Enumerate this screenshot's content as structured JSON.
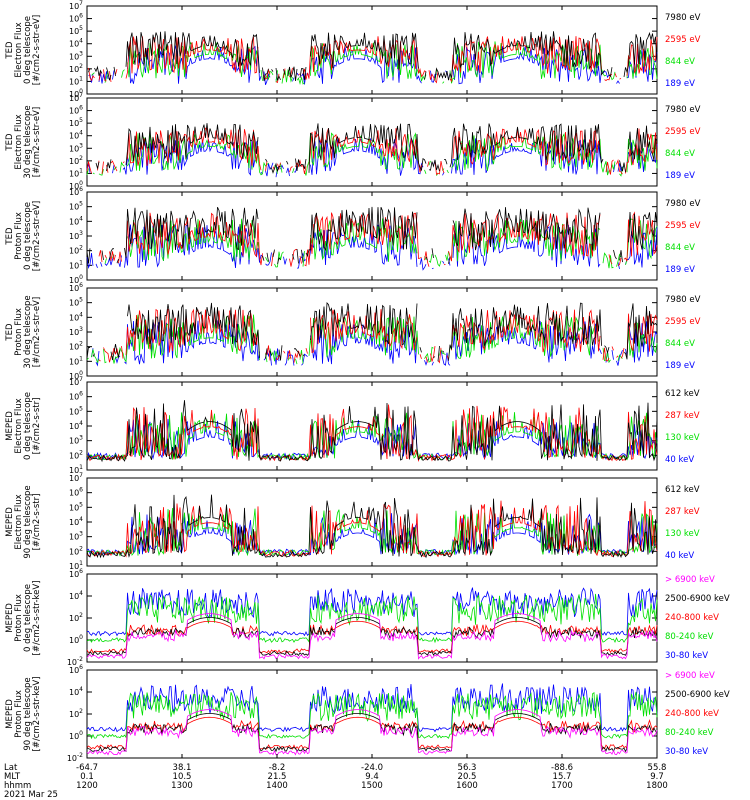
{
  "chart_data": [
    {
      "type": "line",
      "ylabel": [
        "TED",
        "Electron Flux",
        "0 deg telescope",
        "[#/cm2-s-str-eV]"
      ],
      "y_log_range": [
        0,
        7
      ],
      "y_tick_labels": [
        "10^0",
        "10^1",
        "10^2",
        "10^3",
        "10^4",
        "10^5",
        "10^6",
        "10^7"
      ],
      "series": [
        {
          "name": "7980 eV",
          "color": "#000000"
        },
        {
          "name": "2595 eV",
          "color": "#ff0000"
        },
        {
          "name": "844 eV",
          "color": "#00e000"
        },
        {
          "name": "189 eV",
          "color": "#0000ff"
        }
      ]
    },
    {
      "type": "line",
      "ylabel": [
        "TED",
        "Electron Flux",
        "30 deg telescope",
        "[#/cm2-s-str-eV]"
      ],
      "y_log_range": [
        0,
        7
      ],
      "y_tick_labels": [
        "10^0",
        "10^1",
        "10^2",
        "10^3",
        "10^4",
        "10^5",
        "10^6",
        "10^7"
      ],
      "series": [
        {
          "name": "7980 eV",
          "color": "#000000"
        },
        {
          "name": "2595 eV",
          "color": "#ff0000"
        },
        {
          "name": "844 eV",
          "color": "#00e000"
        },
        {
          "name": "189 eV",
          "color": "#0000ff"
        }
      ]
    },
    {
      "type": "line",
      "ylabel": [
        "TED",
        "Proton Flux",
        "0 deg telescope",
        "[#/cm2-s-str-eV]"
      ],
      "y_log_range": [
        0,
        6
      ],
      "y_tick_labels": [
        "10^0",
        "10^1",
        "10^2",
        "10^3",
        "10^4",
        "10^5",
        "10^6"
      ],
      "series": [
        {
          "name": "7980 eV",
          "color": "#000000"
        },
        {
          "name": "2595 eV",
          "color": "#ff0000"
        },
        {
          "name": "844 eV",
          "color": "#00e000"
        },
        {
          "name": "189 eV",
          "color": "#0000ff"
        }
      ]
    },
    {
      "type": "line",
      "ylabel": [
        "TED",
        "Proton Flux",
        "30 deg telescope",
        "[#/cm2-s-str-eV]"
      ],
      "y_log_range": [
        0,
        6
      ],
      "y_tick_labels": [
        "10^0",
        "10^1",
        "10^2",
        "10^3",
        "10^4",
        "10^5",
        "10^6"
      ],
      "series": [
        {
          "name": "7980 eV",
          "color": "#000000"
        },
        {
          "name": "2595 eV",
          "color": "#ff0000"
        },
        {
          "name": "844 eV",
          "color": "#00e000"
        },
        {
          "name": "189 eV",
          "color": "#0000ff"
        }
      ]
    },
    {
      "type": "line",
      "ylabel": [
        "MEPED",
        "Electron Flux",
        "0 deg telescope",
        "[#/cm2-s-str]"
      ],
      "y_log_range": [
        1,
        7
      ],
      "y_tick_labels": [
        "10^1",
        "10^2",
        "10^3",
        "10^4",
        "10^5",
        "10^6",
        "10^7"
      ],
      "series": [
        {
          "name": "612 keV",
          "color": "#000000"
        },
        {
          "name": "287 keV",
          "color": "#ff0000"
        },
        {
          "name": "130 keV",
          "color": "#00e000"
        },
        {
          "name": "40 keV",
          "color": "#0000ff"
        }
      ]
    },
    {
      "type": "line",
      "ylabel": [
        "MEPED",
        "Electron Flux",
        "90 deg telescope",
        "[#/cm2-s-str]"
      ],
      "y_log_range": [
        1,
        7
      ],
      "y_tick_labels": [
        "10^1",
        "10^2",
        "10^3",
        "10^4",
        "10^5",
        "10^6",
        "10^7"
      ],
      "series": [
        {
          "name": "612 keV",
          "color": "#000000"
        },
        {
          "name": "287 keV",
          "color": "#ff0000"
        },
        {
          "name": "130 keV",
          "color": "#00e000"
        },
        {
          "name": "40 keV",
          "color": "#0000ff"
        }
      ]
    },
    {
      "type": "line",
      "ylabel": [
        "MEPED",
        "Proton Flux",
        "0 deg telescope",
        "[#/cm2-s-str-keV]"
      ],
      "y_log_range": [
        -2,
        6
      ],
      "y_tick_labels": [
        "10^-2",
        "10^0",
        "10^2",
        "10^4",
        "10^6"
      ],
      "series": [
        {
          "name": "> 6900 keV",
          "color": "#ff00ff"
        },
        {
          "name": "2500-6900 keV",
          "color": "#000000"
        },
        {
          "name": "240-800 keV",
          "color": "#ff0000"
        },
        {
          "name": "80-240 keV",
          "color": "#00e000"
        },
        {
          "name": "30-80 keV",
          "color": "#0000ff"
        }
      ]
    },
    {
      "type": "line",
      "ylabel": [
        "MEPED",
        "Proton Flux",
        "90 deg telescope",
        "[#/cm2-s-str-keV]"
      ],
      "y_log_range": [
        -2,
        6
      ],
      "y_tick_labels": [
        "10^-2",
        "10^0",
        "10^2",
        "10^4",
        "10^6"
      ],
      "series": [
        {
          "name": "> 6900 keV",
          "color": "#ff00ff"
        },
        {
          "name": "2500-6900 keV",
          "color": "#000000"
        },
        {
          "name": "240-800 keV",
          "color": "#ff0000"
        },
        {
          "name": "80-240 keV",
          "color": "#00e000"
        },
        {
          "name": "30-80 keV",
          "color": "#0000ff"
        }
      ]
    }
  ],
  "x_axis": {
    "row_labels": [
      "Lat",
      "MLT",
      "hhmm",
      "2021 Mar 25"
    ],
    "ticks": [
      {
        "lat": "-64.7",
        "mlt": "0.1",
        "hhmm": "1200"
      },
      {
        "lat": "38.1",
        "mlt": "10.5",
        "hhmm": "1300"
      },
      {
        "lat": "-8.2",
        "mlt": "21.5",
        "hhmm": "1400"
      },
      {
        "lat": "-24.0",
        "mlt": "9.4",
        "hhmm": "1500"
      },
      {
        "lat": "56.3",
        "mlt": "20.5",
        "hhmm": "1600"
      },
      {
        "lat": "-88.6",
        "mlt": "15.7",
        "hhmm": "1700"
      },
      {
        "lat": "55.8",
        "mlt": "9.7",
        "hhmm": "1800"
      }
    ]
  }
}
